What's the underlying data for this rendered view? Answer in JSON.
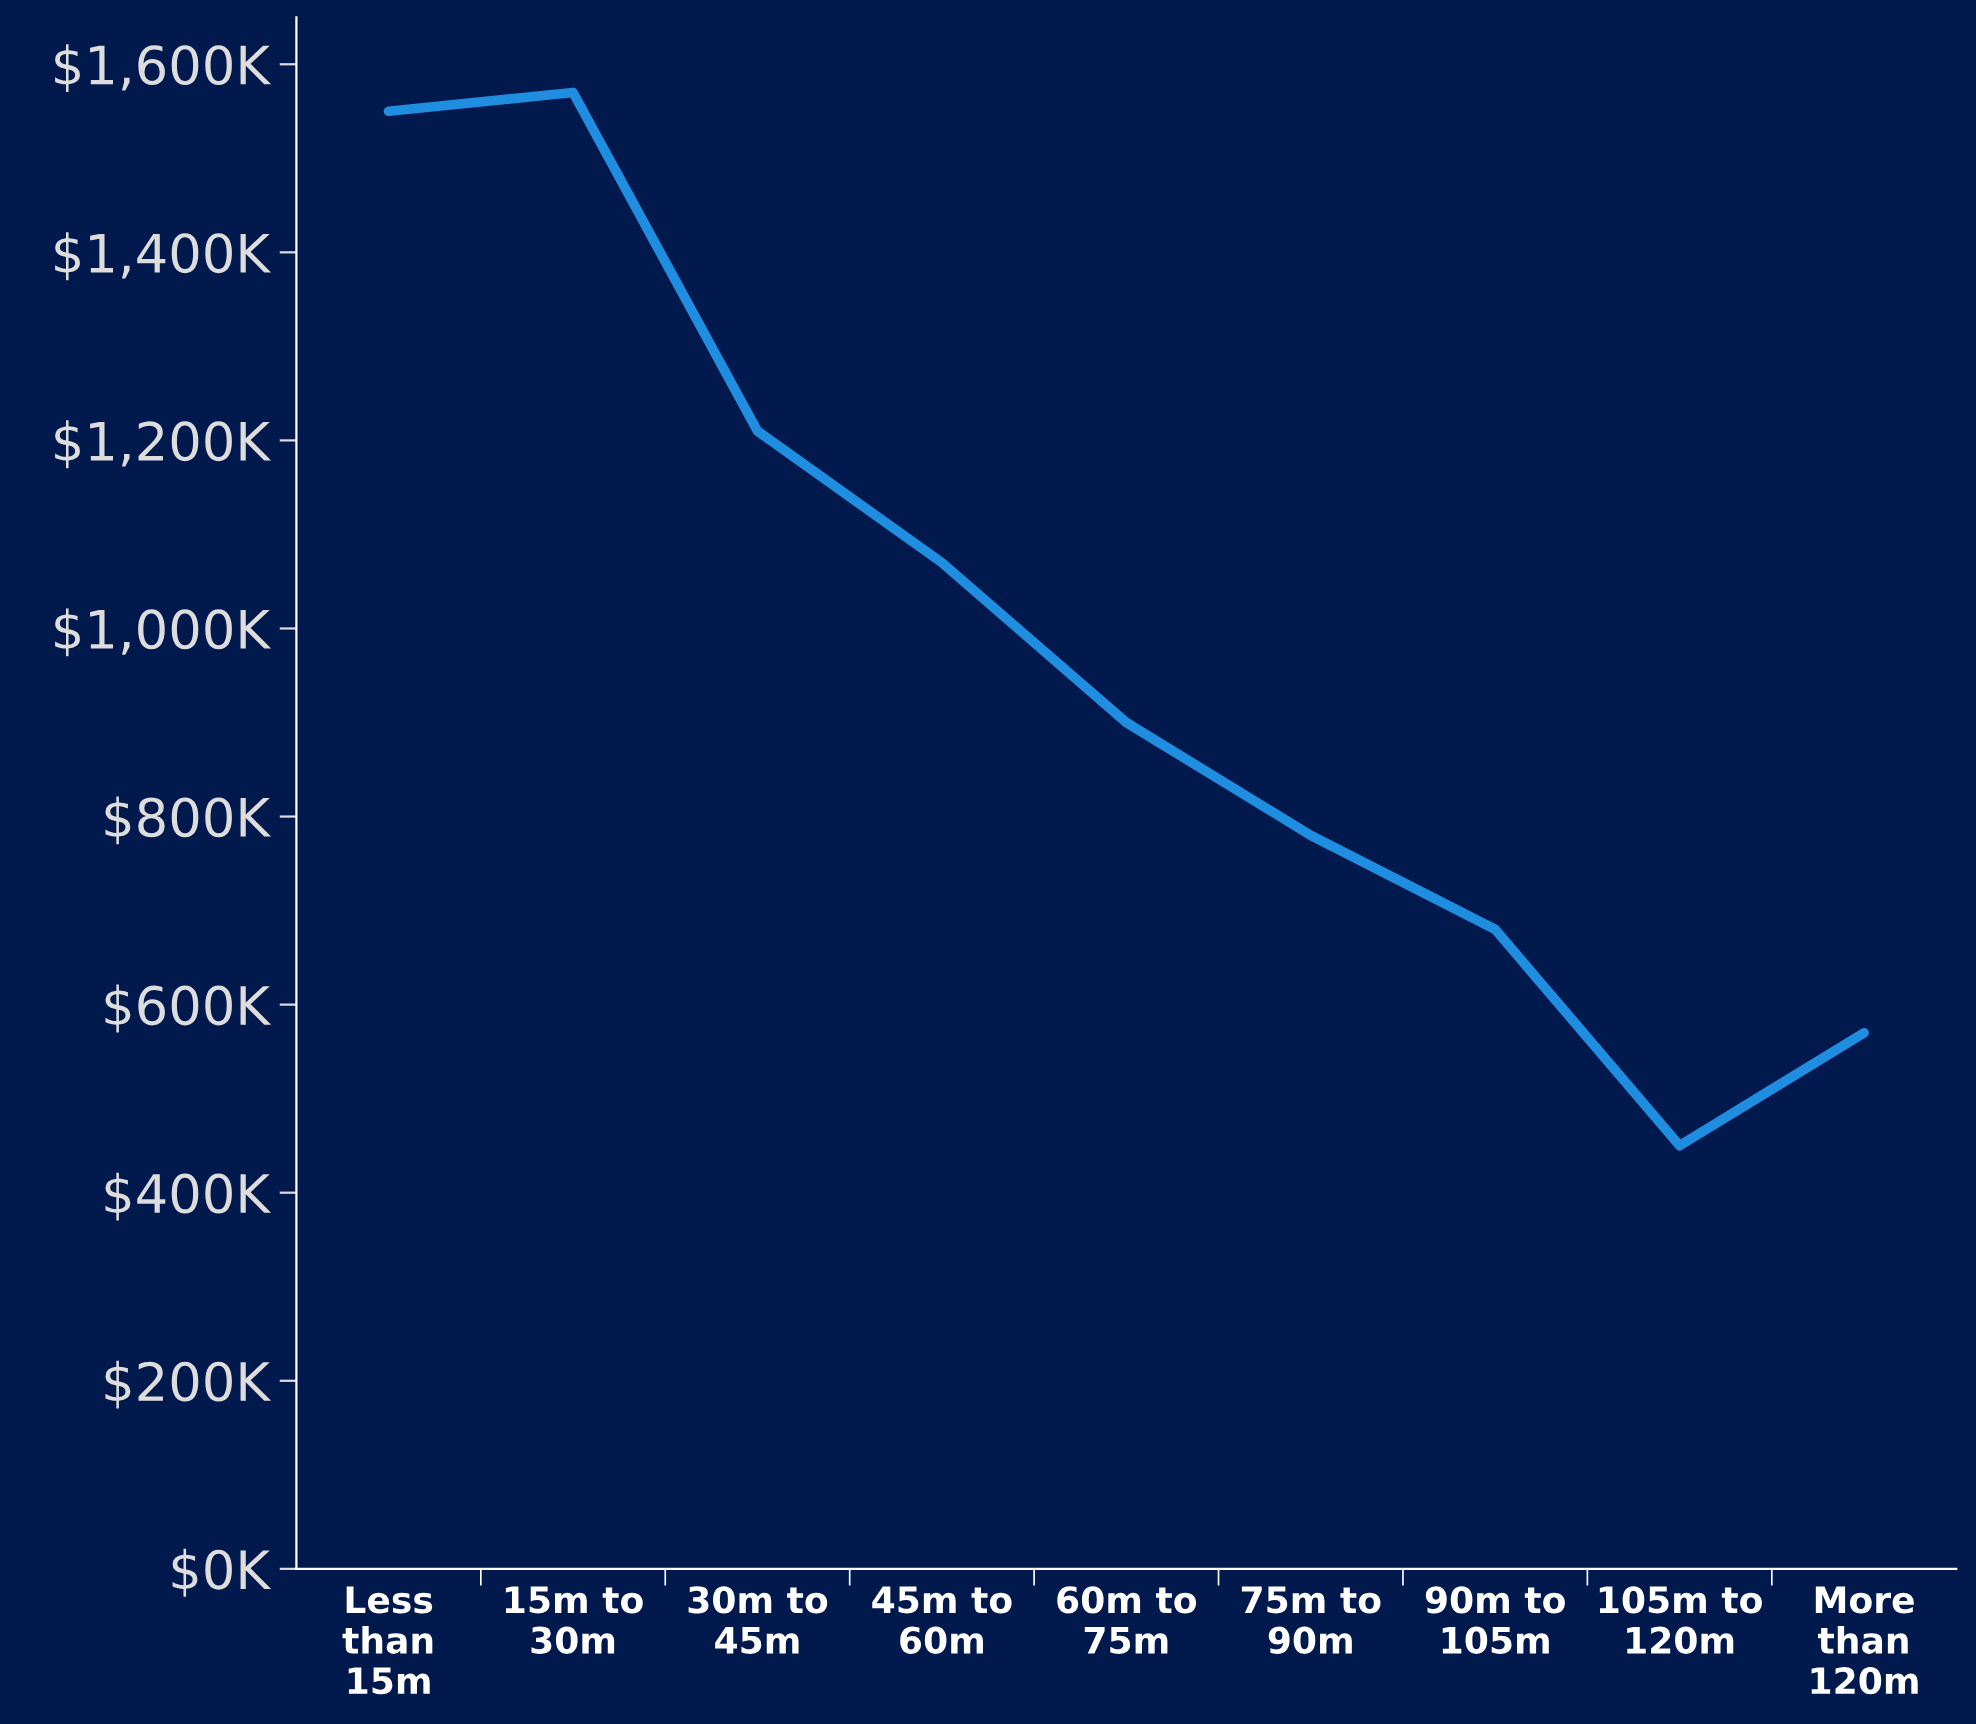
{
  "chart_data": {
    "type": "line",
    "categories": [
      "Less\nthan\n15m",
      "15m to\n30m",
      "30m to\n45m",
      "45m to\n60m",
      "60m to\n75m",
      "75m to\n90m",
      "90m to\n105m",
      "105m to\n120m",
      "More\nthan\n120m"
    ],
    "series": [
      {
        "color": "#1f8ee0",
        "values": [
          1550,
          1570,
          1210,
          1070,
          900,
          780,
          680,
          450,
          570
        ]
      }
    ],
    "ylim": [
      0,
      1650
    ],
    "yticks": [
      {
        "value": 0,
        "label": "$0K"
      },
      {
        "value": 200,
        "label": "$200K"
      },
      {
        "value": 400,
        "label": "$400K"
      },
      {
        "value": 600,
        "label": "$600K"
      },
      {
        "value": 800,
        "label": "$800K"
      },
      {
        "value": 1000,
        "label": "$1,000K"
      },
      {
        "value": 1200,
        "label": "$1,200K"
      },
      {
        "value": 1400,
        "label": "$1,400K"
      },
      {
        "value": 1600,
        "label": "$1,600K"
      }
    ],
    "grid": false,
    "marker": "none",
    "line_style": "solid"
  }
}
